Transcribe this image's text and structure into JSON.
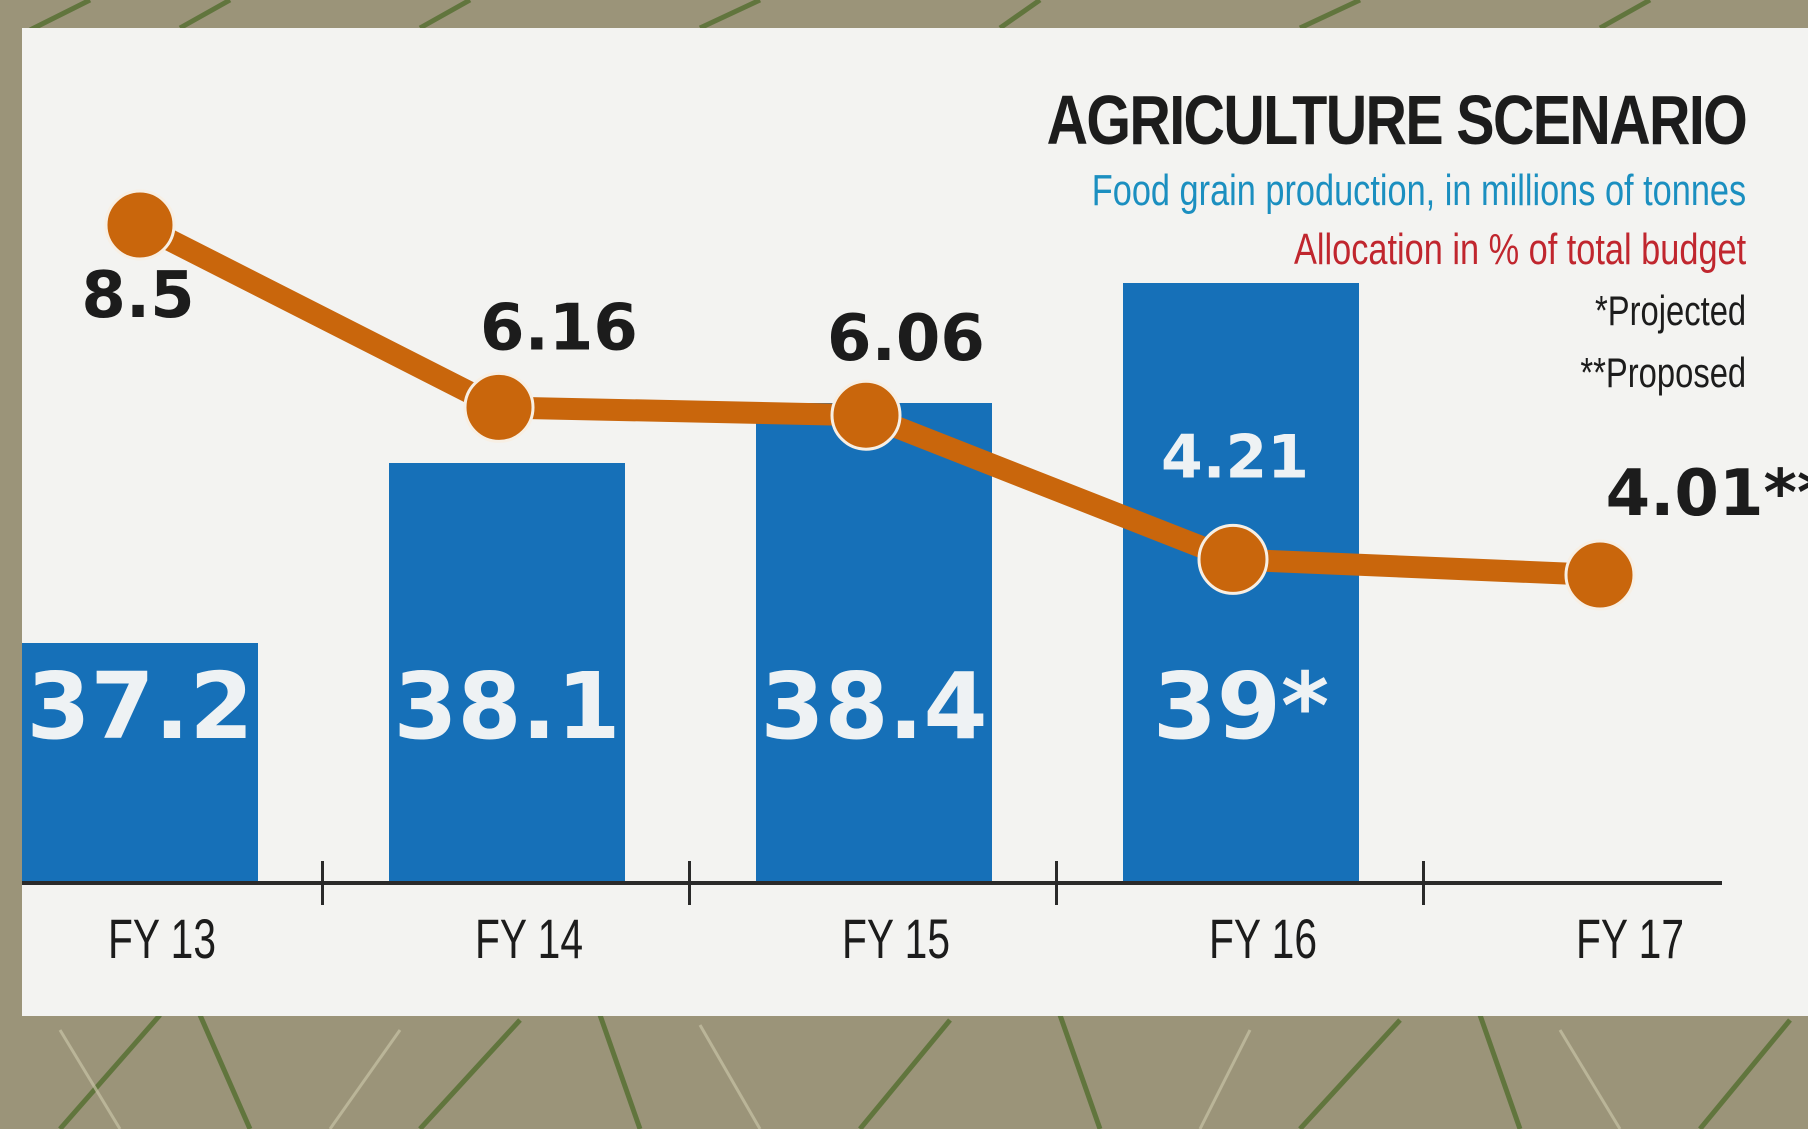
{
  "chart_data": {
    "type": "bar",
    "title": "AGRICULTURE SCENARIO",
    "subtitle_bars": "Food grain production, in millions of tonnes",
    "subtitle_line": "Allocation in % of total budget",
    "notes": [
      "*Projected",
      "**Proposed"
    ],
    "categories": [
      "FY 13",
      "FY 14",
      "FY 15",
      "FY 16",
      "FY 17"
    ],
    "series": [
      {
        "name": "Food grain production, in millions of tonnes",
        "kind": "bar",
        "values": [
          37.2,
          38.1,
          38.4,
          39,
          null
        ],
        "labels": [
          "37.2",
          "38.1",
          "38.4",
          "39*",
          ""
        ]
      },
      {
        "name": "Allocation in % of total budget",
        "kind": "line",
        "values": [
          8.5,
          6.16,
          6.06,
          4.21,
          4.01
        ],
        "labels": [
          "8.5",
          "6.16",
          "6.06",
          "4.21",
          "4.01**"
        ]
      }
    ],
    "colors": {
      "bar": "#1670b8",
      "line": "#c9660c",
      "marker": "#c9660c"
    },
    "legend": "top-right",
    "grid": false
  }
}
